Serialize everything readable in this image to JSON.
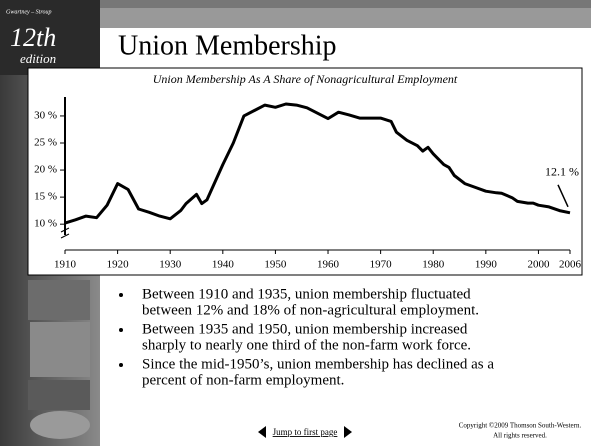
{
  "sidebar": {
    "authors": "Gwartney – Stroup",
    "edition_number": "12th",
    "edition": "edition"
  },
  "slide_title": "Union Membership",
  "chart_data": {
    "type": "line",
    "title": "Union Membership As A Share of Nonagricultural Employment",
    "x": [
      1910,
      1912,
      1914,
      1916,
      1918,
      1920,
      1922,
      1924,
      1926,
      1928,
      1930,
      1932,
      1933,
      1935,
      1936,
      1937,
      1940,
      1942,
      1944,
      1946,
      1948,
      1950,
      1952,
      1954,
      1956,
      1958,
      1960,
      1962,
      1964,
      1966,
      1968,
      1970,
      1972,
      1973,
      1975,
      1977,
      1978,
      1979,
      1980,
      1982,
      1983,
      1984,
      1986,
      1988,
      1990,
      1992,
      1993,
      1995,
      1996,
      1998,
      1999,
      2000,
      2002,
      2004,
      2006
    ],
    "values": [
      10.2,
      10.8,
      11.5,
      11.2,
      13.5,
      17.5,
      16.4,
      12.8,
      12.2,
      11.5,
      11.0,
      12.5,
      13.8,
      15.5,
      13.8,
      14.5,
      21,
      25,
      30,
      31,
      32,
      31.6,
      32.2,
      32,
      31.5,
      30.5,
      29.5,
      30.7,
      30.2,
      29.6,
      29.6,
      29.6,
      29,
      27,
      25.5,
      24.5,
      23.5,
      24.2,
      23,
      21,
      20.5,
      19,
      17.5,
      16.8,
      16.1,
      15.8,
      15.7,
      14.9,
      14.2,
      13.9,
      13.9,
      13.5,
      13.2,
      12.5,
      12.1
    ],
    "color": "#000000",
    "xlim": [
      1910,
      2006
    ],
    "xticks": [
      1910,
      1920,
      1930,
      1940,
      1950,
      1960,
      1970,
      1980,
      1990,
      2000,
      2006
    ],
    "ylim": [
      8,
      33.5
    ],
    "yticks": [
      {
        "value": 10,
        "label": "10 %"
      },
      {
        "value": 15,
        "label": "15 %"
      },
      {
        "value": 20,
        "label": "20 %"
      },
      {
        "value": 25,
        "label": "25 %"
      },
      {
        "value": 30,
        "label": "30 %"
      }
    ],
    "annotation": "12.1 %"
  },
  "bullets": [
    [
      "Between 1910 and 1935, union membership fluctuated",
      "between 12% and 18% of non-agricultural employment."
    ],
    [
      "Between 1935 and 1950, union membership increased",
      "sharply to nearly one third of the non-farm work force."
    ],
    [
      "Since the mid-1950’s, union membership has declined as a",
      "percent of non-farm employment."
    ]
  ],
  "footer": {
    "link": "Jump to first page",
    "copyright": [
      "Copyright ©2009  Thomson South-Western.",
      "All rights reserved."
    ]
  }
}
